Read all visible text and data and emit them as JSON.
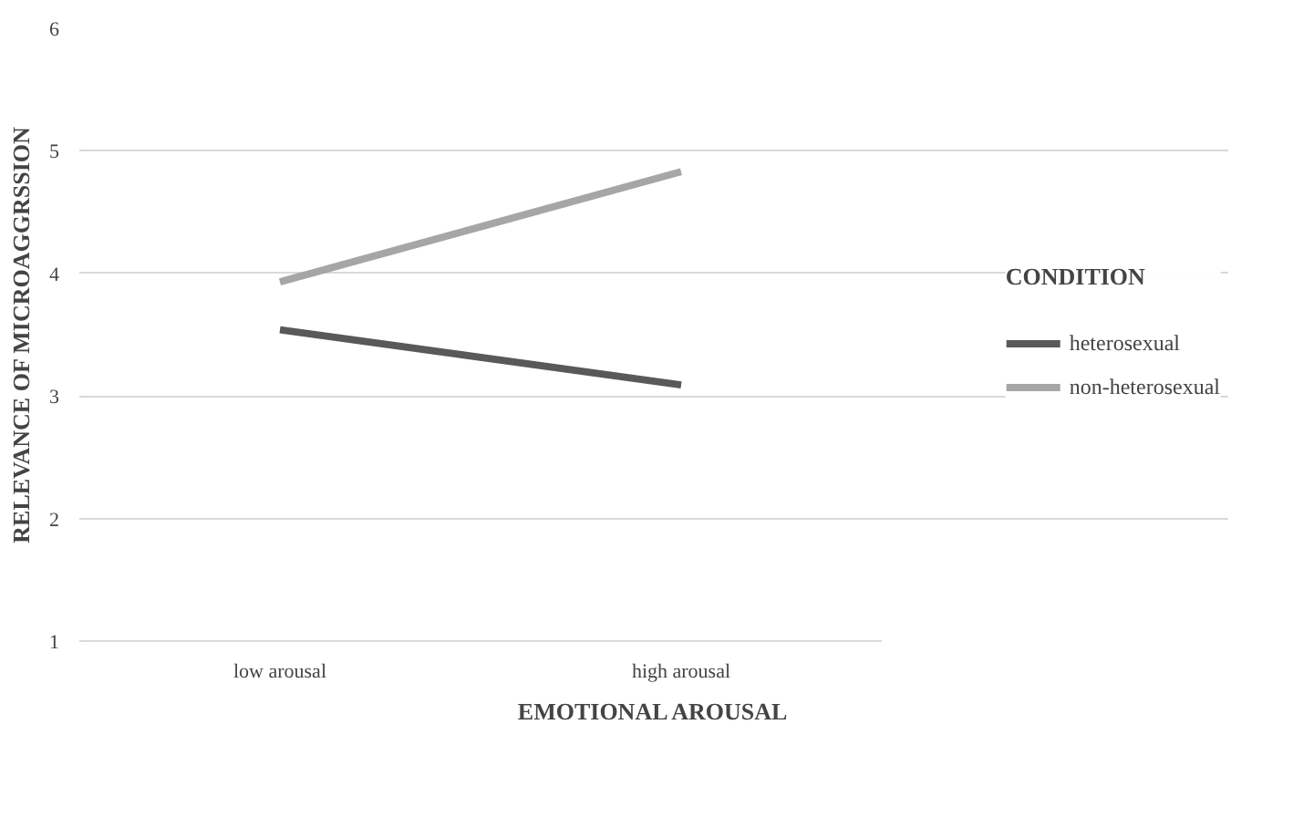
{
  "chart_data": {
    "type": "line",
    "xlabel": "EMOTIONAL AROUSAL",
    "ylabel": "RELEVANCE OF MICROAGGRSSION",
    "legend_title": "CONDITION",
    "categories": [
      "low arousal",
      "high arousal"
    ],
    "series": [
      {
        "name": "heterosexual",
        "color": "#595959",
        "values": [
          3.54,
          3.09
        ]
      },
      {
        "name": "non-heterosexual",
        "color": "#a6a6a6",
        "values": [
          3.93,
          4.83
        ]
      }
    ],
    "ylim": [
      1,
      6
    ],
    "yticks": [
      1,
      2,
      3,
      4,
      5,
      6
    ],
    "grid": "y",
    "legend": "right",
    "marker": "none",
    "line_style": "solid"
  }
}
